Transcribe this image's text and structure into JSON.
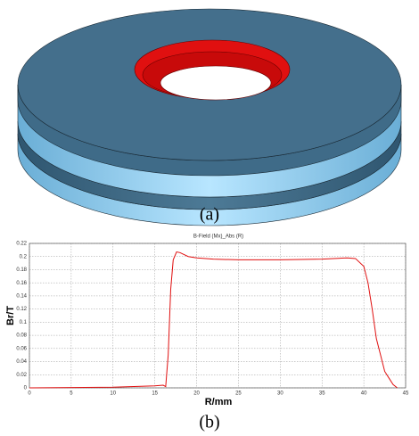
{
  "captions": [
    "(a)",
    "(b)"
  ],
  "chart_data": {
    "type": "line",
    "title": "B-Field (Mx)_Abs (R)",
    "x_label": "R/mm",
    "y_label": "Br/T",
    "x": [
      0,
      10,
      15,
      16,
      16.3,
      16.6,
      16.9,
      17.2,
      17.6,
      18,
      19,
      20,
      22,
      25,
      30,
      35,
      38,
      39,
      40,
      40.5,
      41,
      41.5,
      42,
      42.5,
      43,
      43.5,
      44
    ],
    "values": [
      0,
      0.001,
      0.003,
      0.004,
      0.002,
      0.05,
      0.15,
      0.195,
      0.207,
      0.206,
      0.2,
      0.198,
      0.196,
      0.195,
      0.195,
      0.196,
      0.198,
      0.197,
      0.185,
      0.16,
      0.12,
      0.075,
      0.05,
      0.025,
      0.015,
      0.005,
      0
    ],
    "color": "#e01010",
    "xlim": [
      0,
      45
    ],
    "xticks": [
      0,
      5,
      10,
      15,
      20,
      25,
      30,
      35,
      40,
      45
    ],
    "ylim": [
      0,
      0.22
    ],
    "yticks": [
      0,
      0.02,
      0.04,
      0.06,
      0.08,
      0.1,
      0.12,
      0.14,
      0.16,
      0.18,
      0.2,
      0.22
    ],
    "grid": true
  }
}
